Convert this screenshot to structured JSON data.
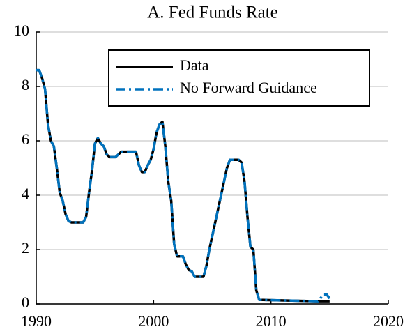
{
  "chart_data": {
    "type": "line",
    "title": "A. Fed Funds Rate",
    "x": [
      1990,
      1990.25,
      1990.5,
      1990.75,
      1991,
      1991.25,
      1991.5,
      1991.75,
      1992,
      1992.25,
      1992.5,
      1992.75,
      1993,
      1994,
      1994.25,
      1994.5,
      1994.75,
      1995,
      1995.25,
      1995.5,
      1995.75,
      1996,
      1996.25,
      1996.75,
      1997,
      1997.25,
      1998.5,
      1998.75,
      1999,
      1999.25,
      1999.5,
      1999.75,
      2000,
      2000.25,
      2000.5,
      2000.75,
      2001,
      2001.25,
      2001.5,
      2001.75,
      2002,
      2002.5,
      2002.75,
      2003,
      2003.25,
      2003.5,
      2004.25,
      2004.5,
      2004.75,
      2005,
      2005.25,
      2005.5,
      2005.75,
      2006,
      2006.25,
      2006.5,
      2007.25,
      2007.5,
      2007.75,
      2008,
      2008.25,
      2008.5,
      2008.75,
      2009,
      2014,
      2014.5,
      2014.75,
      2015
    ],
    "series": [
      {
        "name": "Data",
        "color": "#000000",
        "style": "solid",
        "values": [
          8.6,
          8.6,
          8.3,
          7.9,
          6.6,
          6.0,
          5.8,
          5.0,
          4.1,
          3.8,
          3.3,
          3.05,
          3.0,
          3.0,
          3.2,
          4.1,
          4.9,
          5.9,
          6.1,
          5.9,
          5.8,
          5.5,
          5.4,
          5.4,
          5.5,
          5.6,
          5.6,
          5.1,
          4.85,
          4.85,
          5.1,
          5.3,
          5.7,
          6.3,
          6.6,
          6.7,
          5.8,
          4.5,
          3.8,
          2.2,
          1.75,
          1.75,
          1.45,
          1.25,
          1.2,
          1.0,
          1.0,
          1.4,
          2.0,
          2.5,
          3.0,
          3.5,
          4.0,
          4.5,
          5.0,
          5.3,
          5.3,
          5.2,
          4.5,
          3.2,
          2.1,
          2.0,
          0.5,
          0.15,
          0.1,
          0.1,
          0.1,
          0.1
        ]
      },
      {
        "name": "No Forward Guidance",
        "color": "#0072bd",
        "style": "dashdot",
        "values": [
          8.6,
          8.6,
          8.3,
          7.9,
          6.6,
          6.0,
          5.8,
          5.0,
          4.1,
          3.8,
          3.3,
          3.05,
          3.0,
          3.0,
          3.2,
          4.1,
          4.9,
          5.9,
          6.1,
          5.9,
          5.8,
          5.5,
          5.4,
          5.4,
          5.5,
          5.6,
          5.6,
          5.1,
          4.85,
          4.85,
          5.1,
          5.3,
          5.7,
          6.3,
          6.6,
          6.7,
          5.8,
          4.5,
          3.8,
          2.2,
          1.75,
          1.75,
          1.45,
          1.25,
          1.2,
          1.0,
          1.0,
          1.4,
          2.0,
          2.5,
          3.0,
          3.5,
          4.0,
          4.5,
          5.0,
          5.3,
          5.3,
          5.2,
          4.5,
          3.2,
          2.1,
          2.0,
          0.5,
          0.15,
          0.1,
          0.35,
          0.35,
          0.2
        ]
      }
    ],
    "xlim": [
      1990,
      2020
    ],
    "xticks": [
      1990,
      2000,
      2010,
      2020
    ],
    "ylim": [
      0,
      10
    ],
    "yticks": [
      0,
      2,
      4,
      6,
      8,
      10
    ],
    "grid": true,
    "legend": "top-right"
  }
}
